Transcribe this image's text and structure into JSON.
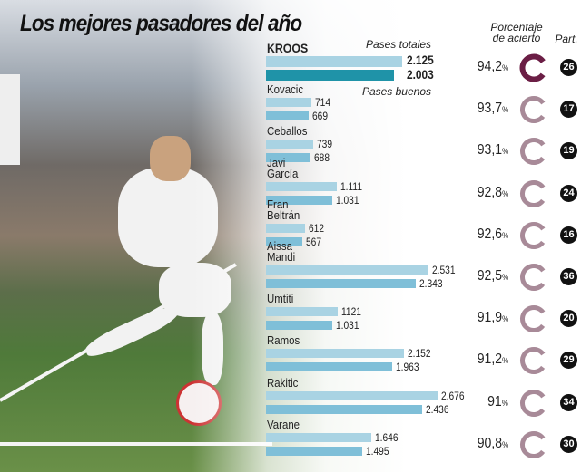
{
  "title": "Los mejores pasadores del año",
  "headers": {
    "total": "Pases totales",
    "good": "Pases buenos",
    "accuracy": "Porcentaje de acierto",
    "matches": "Part."
  },
  "colors": {
    "total_bar": "#a9d3e3",
    "good_bar": "#7fbfd8",
    "lead_total_bar": "#a9d3e3",
    "lead_good_bar": "#1f93a8",
    "lead_ring": "#6b1e45",
    "ring": "#a88a98"
  },
  "chart_data": {
    "type": "bar",
    "categories": [
      "KROOS",
      "Kovacic",
      "Ceballos",
      "Javi García",
      "Fran Beltrán",
      "Aissa Mandi",
      "Umtiti",
      "Ramos",
      "Rakitic",
      "Varane"
    ],
    "series": [
      {
        "name": "Pases totales",
        "values": [
          2125,
          714,
          739,
          1111,
          612,
          2531,
          1121,
          2152,
          2676,
          1646
        ],
        "labels": [
          "2.125",
          "714",
          "739",
          "1.111",
          "612",
          "2.531",
          "1121",
          "2.152",
          "2.676",
          "1.646"
        ]
      },
      {
        "name": "Pases buenos",
        "values": [
          2003,
          669,
          688,
          1031,
          567,
          2343,
          1031,
          1963,
          2436,
          1495
        ],
        "labels": [
          "2.003",
          "669",
          "688",
          "1.031",
          "567",
          "2.343",
          "1.031",
          "1.963",
          "2.436",
          "1.495"
        ]
      }
    ],
    "accuracy": [
      "94,2",
      "93,7",
      "93,1",
      "92,8",
      "92,6",
      "92,5",
      "91,9",
      "91,2",
      "91",
      "90,8"
    ],
    "accuracy_values": [
      94.2,
      93.7,
      93.1,
      92.8,
      92.6,
      92.5,
      91.9,
      91.2,
      91,
      90.8
    ],
    "matches": [
      "26",
      "17",
      "19",
      "24",
      "16",
      "36",
      "20",
      "29",
      "34",
      "30"
    ],
    "pct_unit": "%"
  }
}
